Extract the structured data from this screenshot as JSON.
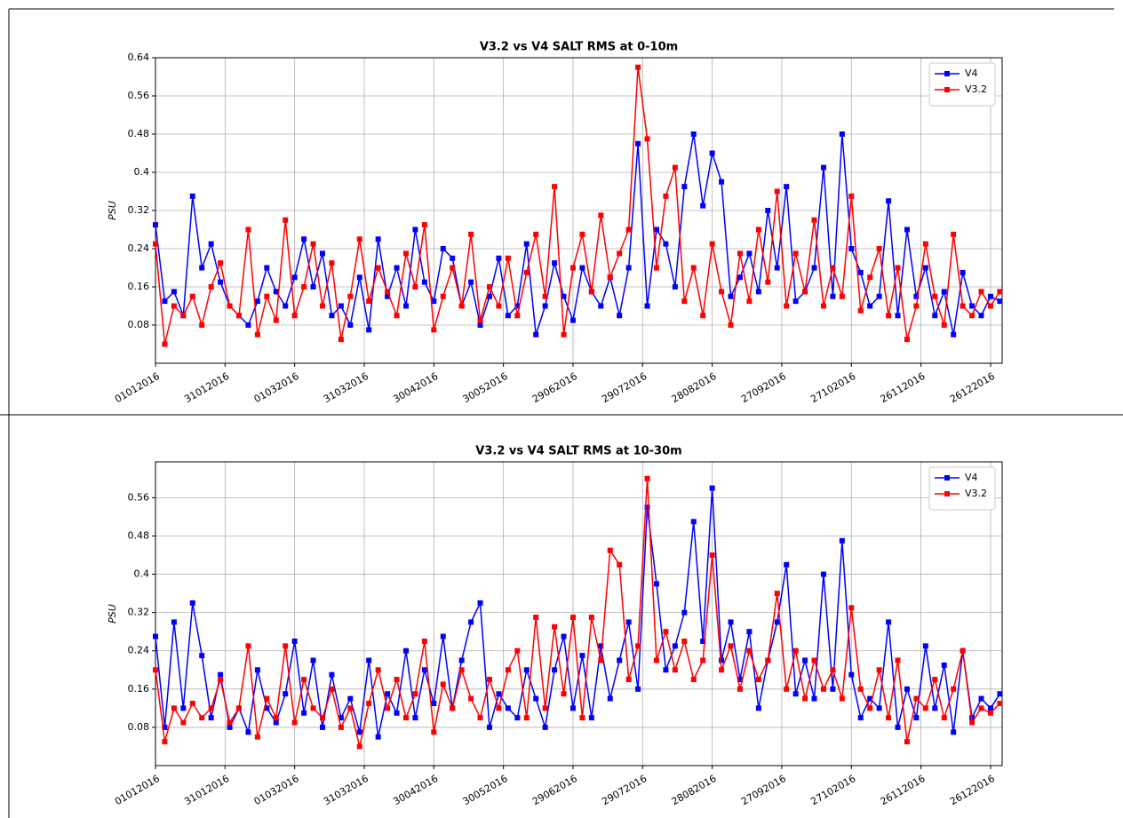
{
  "chart_data": [
    {
      "type": "line",
      "title": "V3.2 vs V4 SALT RMS at 0-10m",
      "y_label": "PSU",
      "grid": true,
      "legend": "upper right",
      "x": [
        0,
        4,
        8,
        12,
        16,
        20,
        24,
        28,
        32,
        36,
        40,
        44,
        48,
        52,
        56,
        60,
        64,
        68,
        72,
        76,
        80,
        84,
        88,
        92,
        96,
        100,
        104,
        108,
        112,
        116,
        120,
        124,
        128,
        132,
        136,
        140,
        144,
        148,
        152,
        156,
        160,
        164,
        168,
        172,
        176,
        180,
        184,
        188,
        192,
        196,
        200,
        204,
        208,
        212,
        216,
        220,
        224,
        228,
        232,
        236,
        240,
        244,
        248,
        252,
        256,
        260,
        264,
        268,
        272,
        276,
        280,
        284,
        288,
        292,
        296,
        300,
        304,
        308,
        312,
        316,
        320,
        324,
        328,
        332,
        336,
        340,
        344,
        348,
        352,
        356,
        360,
        364
      ],
      "xlim": [
        0,
        365
      ],
      "xticks": [
        {
          "value": 0,
          "label": "01012016"
        },
        {
          "value": 30,
          "label": "31012016"
        },
        {
          "value": 60,
          "label": "01032016"
        },
        {
          "value": 90,
          "label": "31032016"
        },
        {
          "value": 120,
          "label": "30042016"
        },
        {
          "value": 150,
          "label": "30052016"
        },
        {
          "value": 180,
          "label": "29062016"
        },
        {
          "value": 210,
          "label": "29072016"
        },
        {
          "value": 240,
          "label": "28082016"
        },
        {
          "value": 270,
          "label": "27092016"
        },
        {
          "value": 300,
          "label": "27102016"
        },
        {
          "value": 330,
          "label": "26112016"
        },
        {
          "value": 360,
          "label": "26122016"
        }
      ],
      "ylim": [
        0,
        0.64
      ],
      "yticks": [
        0.08,
        0.16,
        0.24,
        0.32,
        0.4,
        0.48,
        0.56,
        0.64
      ],
      "series": [
        {
          "name": "V4",
          "color": "#0000ff",
          "values": [
            0.29,
            0.13,
            0.15,
            0.1,
            0.35,
            0.2,
            0.25,
            0.17,
            0.12,
            0.1,
            0.08,
            0.13,
            0.2,
            0.15,
            0.12,
            0.18,
            0.26,
            0.16,
            0.23,
            0.1,
            0.12,
            0.08,
            0.18,
            0.07,
            0.26,
            0.14,
            0.2,
            0.12,
            0.28,
            0.17,
            0.13,
            0.24,
            0.22,
            0.12,
            0.17,
            0.08,
            0.14,
            0.22,
            0.1,
            0.12,
            0.25,
            0.06,
            0.12,
            0.21,
            0.14,
            0.09,
            0.2,
            0.15,
            0.12,
            0.18,
            0.1,
            0.2,
            0.46,
            0.12,
            0.28,
            0.25,
            0.16,
            0.37,
            0.48,
            0.33,
            0.44,
            0.38,
            0.14,
            0.18,
            0.23,
            0.15,
            0.32,
            0.2,
            0.37,
            0.13,
            0.15,
            0.2,
            0.41,
            0.14,
            0.48,
            0.24,
            0.19,
            0.12,
            0.14,
            0.34,
            0.1,
            0.28,
            0.14,
            0.2,
            0.1,
            0.15,
            0.06,
            0.19,
            0.12,
            0.1,
            0.14,
            0.13
          ]
        },
        {
          "name": "V3.2",
          "color": "#ff0000",
          "values": [
            0.25,
            0.04,
            0.12,
            0.1,
            0.14,
            0.08,
            0.16,
            0.21,
            0.12,
            0.1,
            0.28,
            0.06,
            0.14,
            0.09,
            0.3,
            0.1,
            0.16,
            0.25,
            0.12,
            0.21,
            0.05,
            0.14,
            0.26,
            0.13,
            0.2,
            0.15,
            0.1,
            0.23,
            0.16,
            0.29,
            0.07,
            0.14,
            0.2,
            0.12,
            0.27,
            0.09,
            0.16,
            0.12,
            0.22,
            0.1,
            0.19,
            0.27,
            0.14,
            0.37,
            0.06,
            0.2,
            0.27,
            0.15,
            0.31,
            0.18,
            0.23,
            0.28,
            0.62,
            0.47,
            0.2,
            0.35,
            0.41,
            0.13,
            0.2,
            0.1,
            0.25,
            0.15,
            0.08,
            0.23,
            0.13,
            0.28,
            0.17,
            0.36,
            0.12,
            0.23,
            0.15,
            0.3,
            0.12,
            0.2,
            0.14,
            0.35,
            0.11,
            0.18,
            0.24,
            0.1,
            0.2,
            0.05,
            0.12,
            0.25,
            0.14,
            0.08,
            0.27,
            0.12,
            0.1,
            0.15,
            0.12,
            0.15
          ]
        }
      ]
    },
    {
      "type": "line",
      "title": "V3.2 vs V4 SALT RMS at 10-30m",
      "y_label": "PSU",
      "grid": true,
      "legend": "upper right",
      "x": [
        0,
        4,
        8,
        12,
        16,
        20,
        24,
        28,
        32,
        36,
        40,
        44,
        48,
        52,
        56,
        60,
        64,
        68,
        72,
        76,
        80,
        84,
        88,
        92,
        96,
        100,
        104,
        108,
        112,
        116,
        120,
        124,
        128,
        132,
        136,
        140,
        144,
        148,
        152,
        156,
        160,
        164,
        168,
        172,
        176,
        180,
        184,
        188,
        192,
        196,
        200,
        204,
        208,
        212,
        216,
        220,
        224,
        228,
        232,
        236,
        240,
        244,
        248,
        252,
        256,
        260,
        264,
        268,
        272,
        276,
        280,
        284,
        288,
        292,
        296,
        300,
        304,
        308,
        312,
        316,
        320,
        324,
        328,
        332,
        336,
        340,
        344,
        348,
        352,
        356,
        360,
        364
      ],
      "xlim": [
        0,
        365
      ],
      "xticks": [
        {
          "value": 0,
          "label": "01012016"
        },
        {
          "value": 30,
          "label": "31012016"
        },
        {
          "value": 60,
          "label": "01032016"
        },
        {
          "value": 90,
          "label": "31032016"
        },
        {
          "value": 120,
          "label": "30042016"
        },
        {
          "value": 150,
          "label": "30052016"
        },
        {
          "value": 180,
          "label": "29062016"
        },
        {
          "value": 210,
          "label": "29072016"
        },
        {
          "value": 240,
          "label": "28082016"
        },
        {
          "value": 270,
          "label": "27092016"
        },
        {
          "value": 300,
          "label": "27102016"
        },
        {
          "value": 330,
          "label": "26112016"
        },
        {
          "value": 360,
          "label": "26122016"
        }
      ],
      "ylim": [
        0,
        0.635
      ],
      "yticks": [
        0.08,
        0.16,
        0.24,
        0.32,
        0.4,
        0.48,
        0.56
      ],
      "series": [
        {
          "name": "V4",
          "color": "#0000ff",
          "values": [
            0.27,
            0.08,
            0.3,
            0.12,
            0.34,
            0.23,
            0.1,
            0.19,
            0.08,
            0.12,
            0.07,
            0.2,
            0.12,
            0.09,
            0.15,
            0.26,
            0.11,
            0.22,
            0.08,
            0.19,
            0.1,
            0.14,
            0.07,
            0.22,
            0.06,
            0.15,
            0.11,
            0.24,
            0.1,
            0.2,
            0.13,
            0.27,
            0.12,
            0.22,
            0.3,
            0.34,
            0.08,
            0.15,
            0.12,
            0.1,
            0.2,
            0.14,
            0.08,
            0.2,
            0.27,
            0.12,
            0.23,
            0.1,
            0.25,
            0.14,
            0.22,
            0.3,
            0.16,
            0.54,
            0.38,
            0.2,
            0.25,
            0.32,
            0.51,
            0.26,
            0.58,
            0.22,
            0.3,
            0.18,
            0.28,
            0.12,
            0.22,
            0.3,
            0.42,
            0.15,
            0.22,
            0.14,
            0.4,
            0.16,
            0.47,
            0.19,
            0.1,
            0.14,
            0.12,
            0.3,
            0.08,
            0.16,
            0.1,
            0.25,
            0.12,
            0.21,
            0.07,
            0.24,
            0.1,
            0.14,
            0.12,
            0.15
          ]
        },
        {
          "name": "V3.2",
          "color": "#ff0000",
          "values": [
            0.2,
            0.05,
            0.12,
            0.09,
            0.13,
            0.1,
            0.12,
            0.18,
            0.09,
            0.12,
            0.25,
            0.06,
            0.14,
            0.1,
            0.25,
            0.09,
            0.18,
            0.12,
            0.1,
            0.16,
            0.08,
            0.12,
            0.04,
            0.13,
            0.2,
            0.12,
            0.18,
            0.1,
            0.15,
            0.26,
            0.07,
            0.17,
            0.12,
            0.2,
            0.14,
            0.1,
            0.18,
            0.12,
            0.2,
            0.24,
            0.1,
            0.31,
            0.12,
            0.29,
            0.15,
            0.31,
            0.1,
            0.31,
            0.22,
            0.45,
            0.42,
            0.18,
            0.25,
            0.6,
            0.22,
            0.28,
            0.2,
            0.26,
            0.18,
            0.22,
            0.44,
            0.2,
            0.25,
            0.16,
            0.24,
            0.18,
            0.22,
            0.36,
            0.16,
            0.24,
            0.14,
            0.22,
            0.16,
            0.2,
            0.14,
            0.33,
            0.16,
            0.12,
            0.2,
            0.1,
            0.22,
            0.05,
            0.14,
            0.12,
            0.18,
            0.1,
            0.16,
            0.24,
            0.09,
            0.12,
            0.11,
            0.13
          ]
        }
      ]
    }
  ]
}
